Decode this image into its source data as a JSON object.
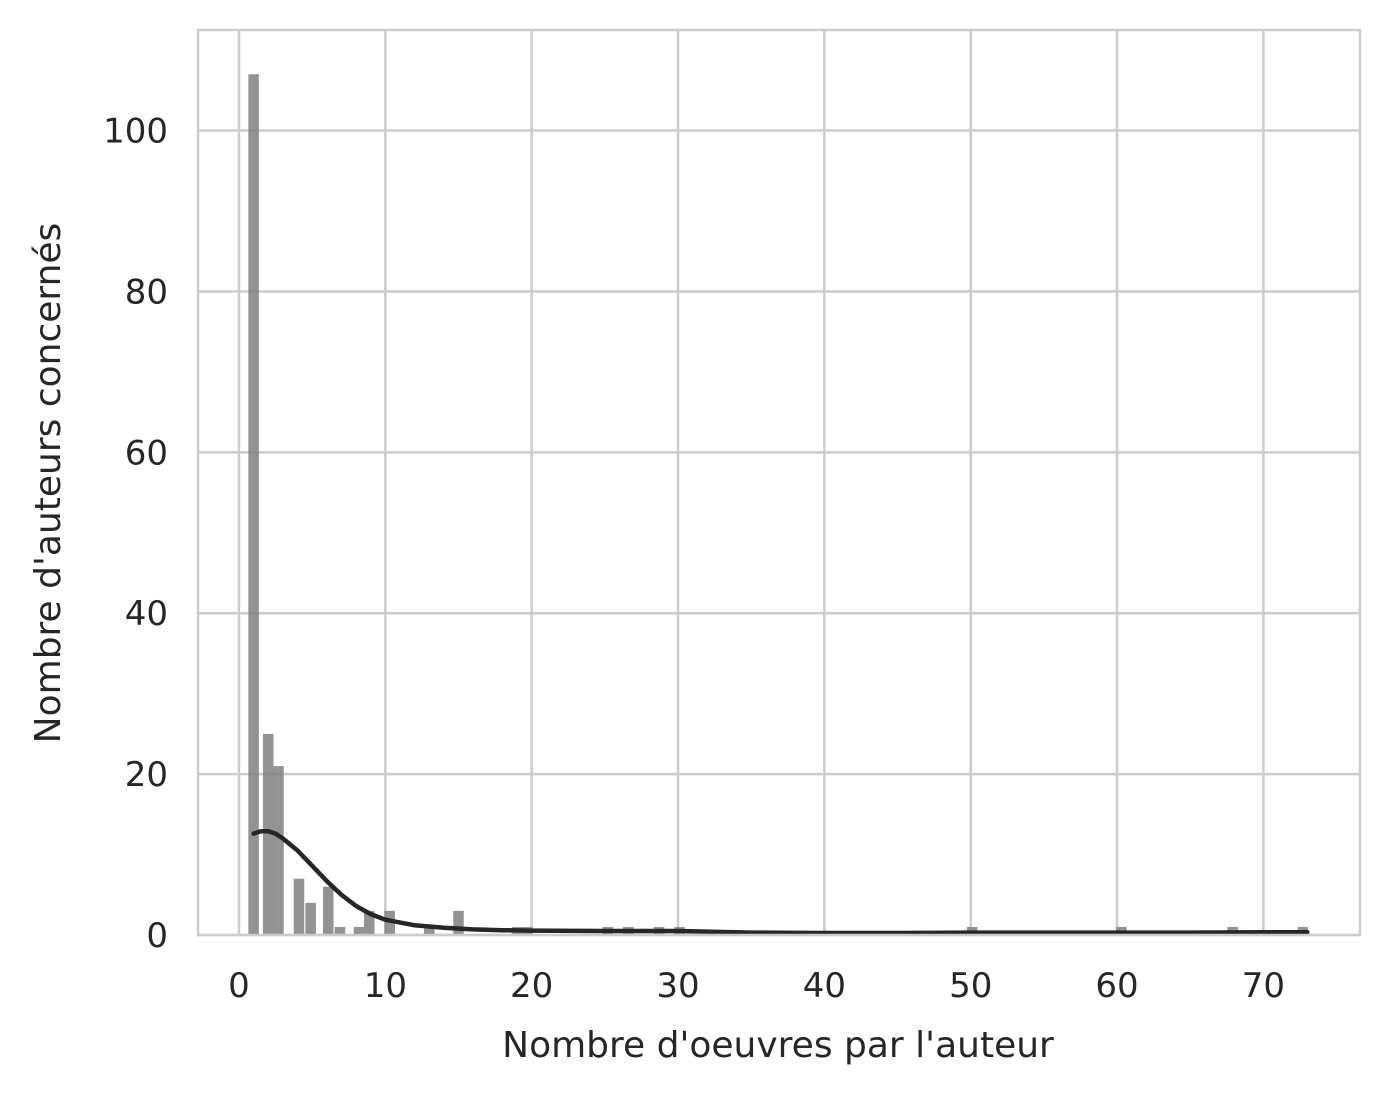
{
  "chart_data": {
    "type": "bar",
    "subtype": "histogram_with_kde",
    "xlabel": "Nombre d'oeuvres par l'auteur",
    "ylabel": "Nombre d'auteurs concernés",
    "xlim": [
      -2.8,
      76.6
    ],
    "ylim": [
      0,
      112.5
    ],
    "xticks": [
      0,
      10,
      20,
      30,
      40,
      50,
      60,
      70
    ],
    "yticks": [
      0,
      20,
      40,
      60,
      80,
      100
    ],
    "grid": true,
    "bar_color": "#808080",
    "kde_color": "#262626",
    "bin_width": 0.72,
    "bins": [
      {
        "x": 1.0,
        "count": 107
      },
      {
        "x": 2.0,
        "count": 25
      },
      {
        "x": 2.7,
        "count": 21
      },
      {
        "x": 4.1,
        "count": 7
      },
      {
        "x": 4.9,
        "count": 4
      },
      {
        "x": 6.1,
        "count": 6
      },
      {
        "x": 6.9,
        "count": 1
      },
      {
        "x": 8.2,
        "count": 1
      },
      {
        "x": 8.9,
        "count": 3
      },
      {
        "x": 10.3,
        "count": 3
      },
      {
        "x": 13.0,
        "count": 1
      },
      {
        "x": 15.0,
        "count": 3
      },
      {
        "x": 19.0,
        "count": 1
      },
      {
        "x": 19.7,
        "count": 1
      },
      {
        "x": 25.2,
        "count": 1
      },
      {
        "x": 26.6,
        "count": 1
      },
      {
        "x": 28.7,
        "count": 1
      },
      {
        "x": 30.1,
        "count": 1
      },
      {
        "x": 50.1,
        "count": 1
      },
      {
        "x": 60.3,
        "count": 1
      },
      {
        "x": 67.9,
        "count": 1
      },
      {
        "x": 72.7,
        "count": 1
      }
    ],
    "kde": {
      "x": [
        1.0,
        1.5,
        2.0,
        2.5,
        3.0,
        4.0,
        5.0,
        6.0,
        7.0,
        8.0,
        9.0,
        10.0,
        12.0,
        14.0,
        16.0,
        18.0,
        20.0,
        25.0,
        30.0,
        35.0,
        40.0,
        45.0,
        50.0,
        55.0,
        60.0,
        65.0,
        70.0,
        73.0
      ],
      "y": [
        12.6,
        12.9,
        12.9,
        12.6,
        12.0,
        10.5,
        8.6,
        6.7,
        5.0,
        3.6,
        2.6,
        1.9,
        1.2,
        0.9,
        0.7,
        0.6,
        0.55,
        0.5,
        0.5,
        0.3,
        0.25,
        0.25,
        0.3,
        0.3,
        0.3,
        0.3,
        0.35,
        0.35
      ]
    }
  }
}
